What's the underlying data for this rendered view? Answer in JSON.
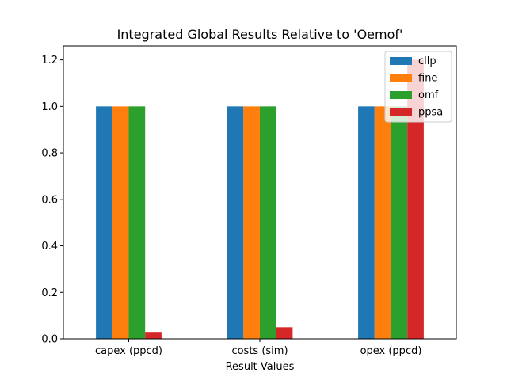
{
  "chart_data": {
    "type": "bar",
    "title": "Integrated Global Results Relative to 'Oemof'",
    "xlabel": "Result Values",
    "ylabel": "",
    "categories": [
      "capex (ppcd)",
      "costs (sim)",
      "opex (ppcd)"
    ],
    "series": [
      {
        "name": "cllp",
        "color": "#1f77b4",
        "values": [
          1.0,
          1.0,
          1.0
        ]
      },
      {
        "name": "fine",
        "color": "#ff7f0e",
        "values": [
          1.0,
          1.0,
          1.0
        ]
      },
      {
        "name": "omf",
        "color": "#2ca02c",
        "values": [
          1.0,
          1.0,
          1.0
        ]
      },
      {
        "name": "ppsa",
        "color": "#d62728",
        "values": [
          0.03,
          0.05,
          1.2
        ]
      }
    ],
    "ylim": [
      0,
      1.26
    ],
    "yticks": [
      0.0,
      0.2,
      0.4,
      0.6,
      0.8,
      1.0,
      1.2
    ],
    "ytick_labels": [
      "0.0",
      "0.2",
      "0.4",
      "0.6",
      "0.8",
      "1.0",
      "1.2"
    ],
    "grid": false,
    "legend_position": "top-right"
  }
}
